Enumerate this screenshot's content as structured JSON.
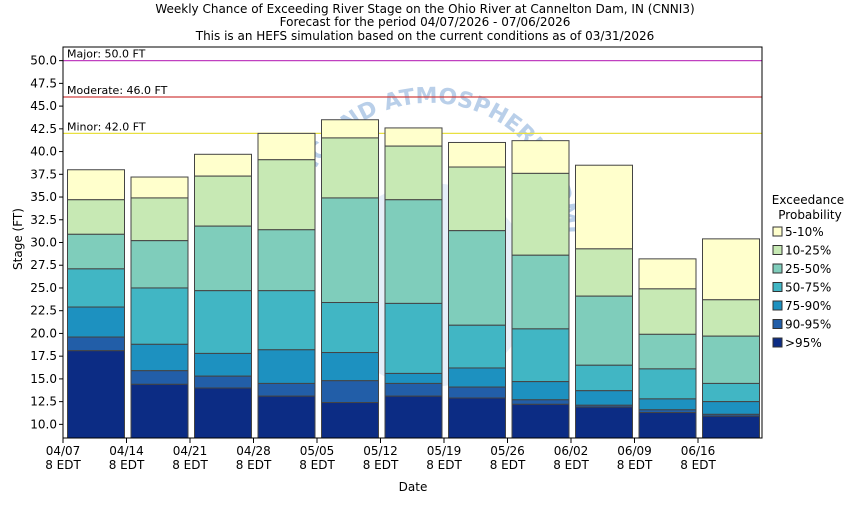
{
  "chart_data": {
    "type": "stacked-bar",
    "title_lines": [
      "Weekly Chance of Exceeding River Stage on the Ohio River at Cannelton Dam, IN (CNNI3)",
      "Forecast for the period 04/07/2026 - 07/06/2026",
      "This is an HEFS simulation based on the current conditions as of 03/31/2026"
    ],
    "xlabel": "Date",
    "ylabel": "Stage (FT)",
    "ylim": [
      8.5,
      51.5
    ],
    "yticks": [
      "10.0",
      "12.5",
      "15.0",
      "17.5",
      "20.0",
      "22.5",
      "25.0",
      "27.5",
      "30.0",
      "32.5",
      "35.0",
      "37.5",
      "40.0",
      "42.5",
      "45.0",
      "47.5",
      "50.0"
    ],
    "xticks": [
      {
        "date": "04/07",
        "tz": "8 EDT"
      },
      {
        "date": "04/14",
        "tz": "8 EDT"
      },
      {
        "date": "04/21",
        "tz": "8 EDT"
      },
      {
        "date": "04/28",
        "tz": "8 EDT"
      },
      {
        "date": "05/05",
        "tz": "8 EDT"
      },
      {
        "date": "05/12",
        "tz": "8 EDT"
      },
      {
        "date": "05/19",
        "tz": "8 EDT"
      },
      {
        "date": "05/26",
        "tz": "8 EDT"
      },
      {
        "date": "06/02",
        "tz": "8 EDT"
      },
      {
        "date": "06/09",
        "tz": "8 EDT"
      },
      {
        "date": "06/16",
        "tz": "8 EDT"
      }
    ],
    "thresholds": [
      {
        "label": "Major: 50.0 FT",
        "value": 50.0,
        "color": "#c040c0"
      },
      {
        "label": "Moderate: 46.0 FT",
        "value": 46.0,
        "color": "#d04040"
      },
      {
        "label": "Minor: 42.0 FT",
        "value": 42.0,
        "color": "#e8e040"
      }
    ],
    "watermark": "NATIONAL OCEANIC AND ATMOSPHERIC ADMINISTRATION",
    "legend_title": [
      "Exceedance",
      "Probability"
    ],
    "series": [
      {
        "name": "5-10%",
        "color": "#ffffcc"
      },
      {
        "name": "10-25%",
        "color": "#c7e9b4"
      },
      {
        "name": "25-50%",
        "color": "#7fcdbb"
      },
      {
        "name": "50-75%",
        "color": "#41b6c4"
      },
      {
        "name": "75-90%",
        "color": "#1d91c0"
      },
      {
        "name": "90-95%",
        "color": "#225ea8"
      },
      {
        "name": ">95%",
        "color": "#0c2c84"
      }
    ],
    "bars": [
      {
        "boundaries": [
          38.0,
          34.7,
          30.9,
          27.1,
          22.9,
          19.6,
          18.1
        ]
      },
      {
        "boundaries": [
          37.2,
          34.9,
          30.2,
          25.0,
          18.8,
          15.9,
          14.4
        ]
      },
      {
        "boundaries": [
          39.7,
          37.3,
          31.8,
          24.7,
          17.8,
          15.3,
          14.0
        ]
      },
      {
        "boundaries": [
          42.0,
          39.1,
          31.4,
          24.7,
          18.2,
          14.5,
          13.1
        ]
      },
      {
        "boundaries": [
          43.5,
          41.5,
          34.9,
          23.4,
          17.9,
          14.8,
          12.4
        ]
      },
      {
        "boundaries": [
          42.6,
          40.6,
          34.7,
          23.3,
          15.6,
          14.5,
          13.1
        ]
      },
      {
        "boundaries": [
          41.0,
          38.3,
          31.3,
          20.9,
          16.2,
          14.1,
          12.9
        ]
      },
      {
        "boundaries": [
          41.2,
          37.6,
          28.6,
          20.5,
          14.7,
          12.7,
          12.2
        ]
      },
      {
        "boundaries": [
          38.5,
          29.3,
          24.1,
          16.5,
          13.7,
          12.1,
          11.9
        ]
      },
      {
        "boundaries": [
          28.2,
          24.9,
          19.9,
          16.1,
          12.8,
          11.6,
          11.3
        ]
      },
      {
        "boundaries": [
          30.4,
          23.7,
          19.7,
          14.5,
          12.5,
          11.1,
          10.9
        ]
      }
    ]
  }
}
